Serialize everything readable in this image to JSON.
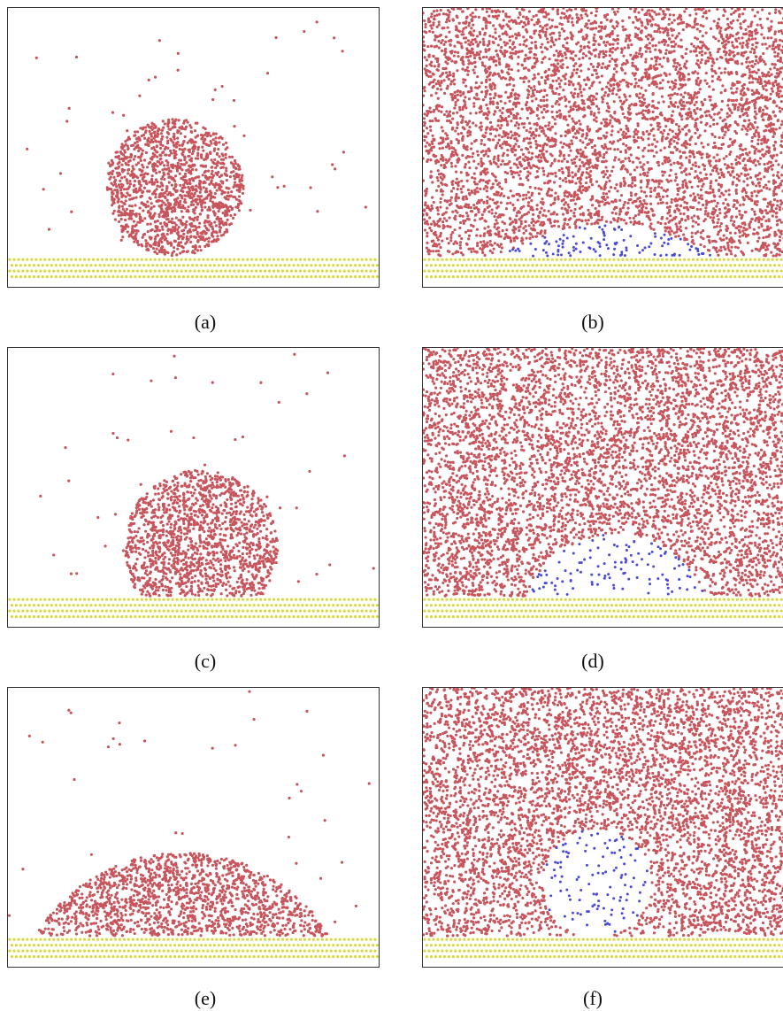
{
  "colors": {
    "liquid_particle": "#c8545c",
    "vapor_particle": "#4a4ad8",
    "substrate_particle": "#d8d840",
    "frame": "#333333",
    "background": "#ffffff"
  },
  "panels": [
    {
      "id": "a",
      "caption": "(a)",
      "kind": "droplet",
      "shape": "sphere",
      "contact_level": "low"
    },
    {
      "id": "b",
      "caption": "(b)",
      "kind": "bubble",
      "shape": "flat-cap",
      "contact_level": "high"
    },
    {
      "id": "c",
      "caption": "(c)",
      "kind": "droplet",
      "shape": "dome",
      "contact_level": "medium"
    },
    {
      "id": "d",
      "caption": "(d)",
      "kind": "bubble",
      "shape": "dome",
      "contact_level": "medium"
    },
    {
      "id": "e",
      "caption": "(e)",
      "kind": "droplet",
      "shape": "flat-cap",
      "contact_level": "high"
    },
    {
      "id": "f",
      "caption": "(f)",
      "kind": "bubble",
      "shape": "sphere",
      "contact_level": "low"
    }
  ]
}
